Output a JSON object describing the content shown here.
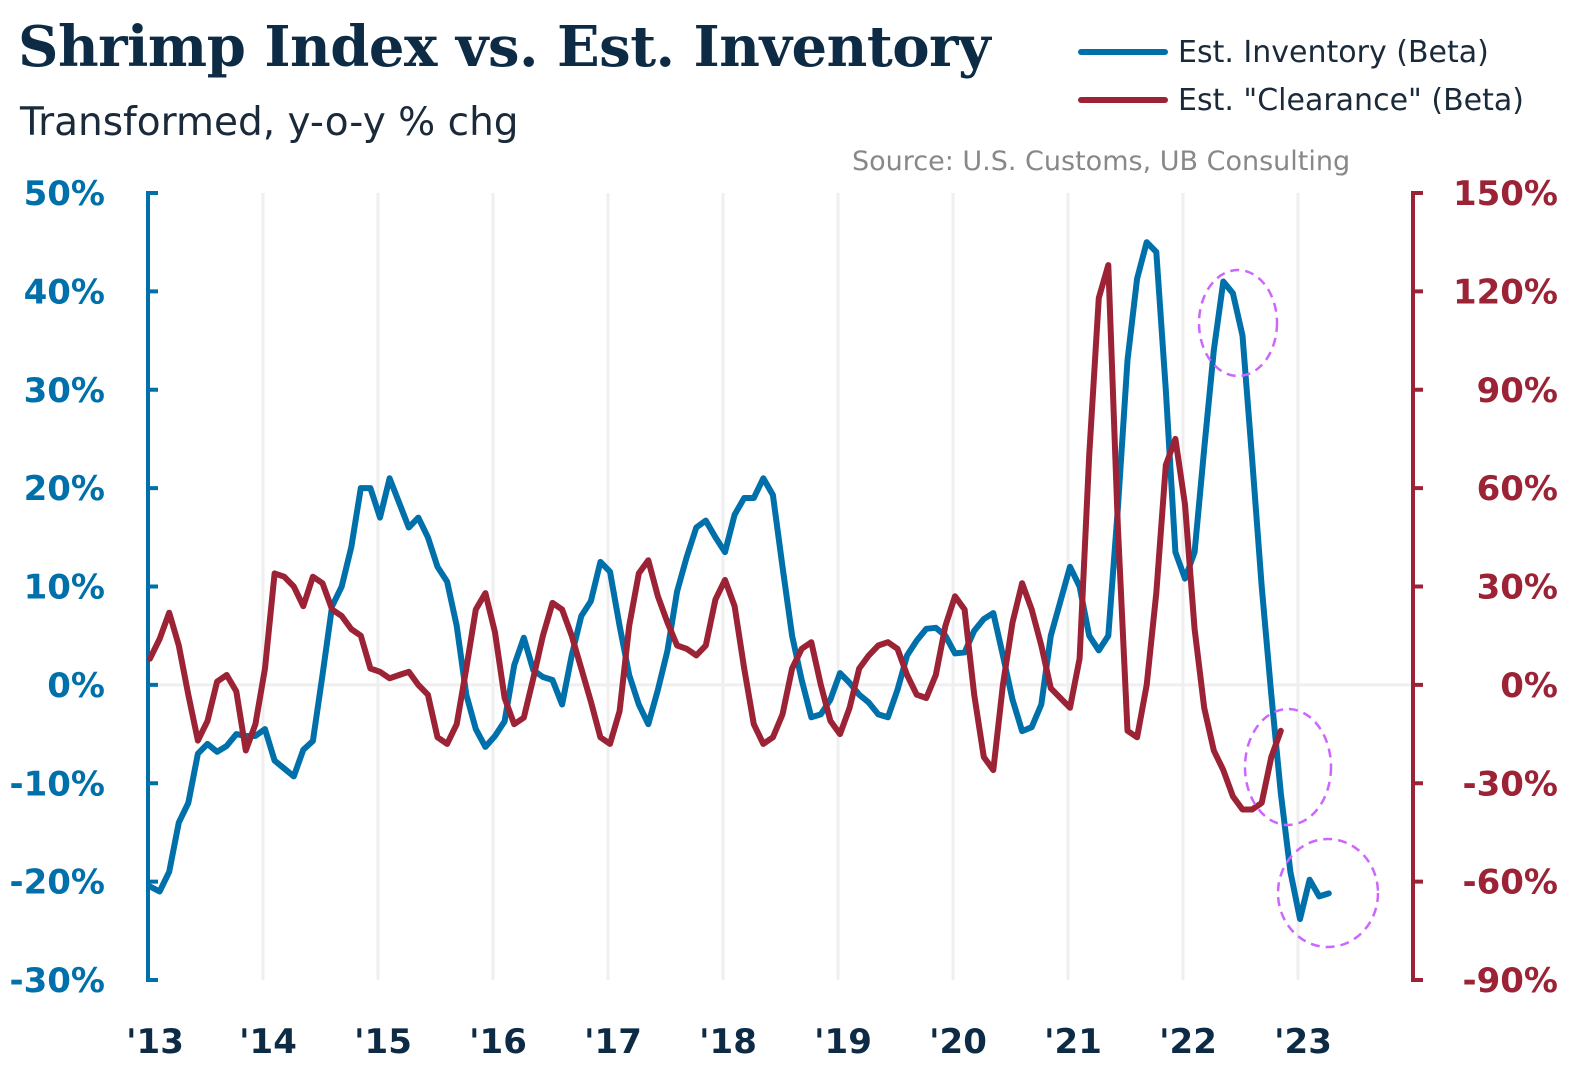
{
  "chart_data": {
    "type": "line",
    "title": "Shrimp Index vs. Est. Inventory",
    "subtitle": "Transformed, y-o-y % chg",
    "source": "Source: U.S. Customs, UB Consulting",
    "x_tick_labels": [
      "'13",
      "'14",
      "'15",
      "'16",
      "'17",
      "'18",
      "'19",
      "'20",
      "'21",
      "'22",
      "'23"
    ],
    "x_start": "2013-01",
    "x_frequency": "monthly",
    "legend_position": "top-right",
    "grid": {
      "vertical": true,
      "horizontal_zero_line": true
    },
    "y_left": {
      "ylim": [
        -30,
        50
      ],
      "ticks": [
        -30,
        -20,
        -10,
        0,
        10,
        20,
        30,
        40,
        50
      ],
      "tick_labels": [
        "-30%",
        "-20%",
        "-10%",
        "0%",
        "10%",
        "20%",
        "30%",
        "40%",
        "50%"
      ],
      "color": "#0070aa"
    },
    "y_right": {
      "ylim": [
        -90,
        150
      ],
      "ticks": [
        -90,
        -60,
        -30,
        0,
        30,
        60,
        90,
        120,
        150
      ],
      "tick_labels": [
        "-90%",
        "-60%",
        "-30%",
        "0%",
        "30%",
        "60%",
        "90%",
        "120%",
        "150%"
      ],
      "color": "#9b2335"
    },
    "series": [
      {
        "name": "Est. Inventory (Beta)",
        "axis": "left",
        "color": "#0070aa",
        "values": [
          -20.5,
          -21,
          -19,
          -14,
          -12,
          -7,
          -6,
          -6.8,
          -6.2,
          -5,
          -5.2,
          -5.2,
          -4.5,
          -7.7,
          -8.5,
          -9.3,
          -6.6,
          -5.7,
          1,
          8,
          10,
          14,
          20,
          20,
          17,
          21,
          18.5,
          16,
          17,
          15,
          12,
          10.5,
          6,
          -1,
          -4.5,
          -6.3,
          -5.2,
          -3.7,
          2,
          4.8,
          1.5,
          0.8,
          0.5,
          -2,
          3,
          7,
          8.5,
          12.5,
          11.5,
          6,
          1,
          -2,
          -4,
          -0.5,
          3.5,
          9.5,
          13,
          16,
          16.7,
          15,
          13.5,
          17.3,
          19,
          19,
          21,
          19.3,
          12,
          5,
          0.5,
          -3.3,
          -3,
          -1.5,
          1.2,
          0.2,
          -1,
          -1.8,
          -3,
          -3.3,
          -0.5,
          3,
          4.5,
          5.7,
          5.8,
          5,
          3.2,
          3.3,
          5.5,
          6.7,
          7.3,
          3,
          -1.5,
          -4.7,
          -4.3,
          -2,
          5,
          8.5,
          12,
          10,
          5,
          3.5,
          5,
          18,
          33,
          41.3,
          45,
          44,
          30,
          13.5,
          10.8,
          13.5,
          24,
          34,
          41,
          39.8,
          35.5,
          23,
          10,
          -1,
          -11,
          -19,
          -23.8,
          -19.8,
          -21.5,
          -21.2
        ]
      },
      {
        "name": "Est. \"Clearance\" (Beta)",
        "axis": "right",
        "color": "#9b2335",
        "values": [
          8,
          14,
          22,
          12,
          -3,
          -17,
          -11,
          1,
          3,
          -2,
          -20,
          -12,
          5,
          34,
          33,
          30,
          24,
          33,
          31,
          23,
          21,
          17,
          15,
          5,
          4,
          2,
          3,
          4,
          0,
          -3,
          -16,
          -18,
          -12,
          5,
          23,
          28,
          16,
          -4,
          -12,
          -10,
          2,
          15,
          25,
          23,
          15,
          5,
          -5,
          -16,
          -18,
          -8,
          18,
          34,
          38,
          27,
          19,
          12,
          11,
          9,
          12,
          26,
          32,
          24,
          5,
          -12,
          -18,
          -16,
          -9,
          5,
          11,
          13,
          0,
          -11,
          -15,
          -7,
          5,
          9,
          12,
          13,
          11,
          3,
          -3,
          -4,
          3,
          18,
          27,
          23,
          -3,
          -22,
          -26,
          0,
          19,
          31,
          23,
          12,
          -1,
          -4,
          -7,
          8,
          70,
          118,
          128,
          48,
          -14,
          -16,
          0,
          28,
          67,
          75,
          55,
          17,
          -7,
          -20,
          -26,
          -34,
          -38,
          -38,
          -36,
          -22,
          -14
        ]
      }
    ]
  },
  "legend": {
    "items": [
      "Est. Inventory (Beta)",
      "Est. \"Clearance\" (Beta)"
    ]
  }
}
